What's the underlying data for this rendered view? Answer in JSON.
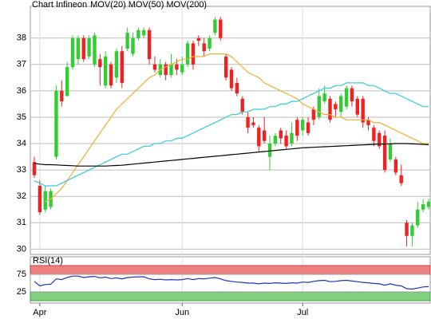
{
  "chart_data": {
    "type": "candlestick",
    "title": "Chart Infineon",
    "title_color": "#d86a2c",
    "categories": [
      null,
      "Apr",
      null,
      null,
      null,
      null,
      null,
      null,
      null,
      null,
      null,
      null,
      null,
      null,
      null,
      null,
      null,
      null,
      null,
      null,
      null,
      null,
      null,
      null,
      null,
      null,
      null,
      "Jun",
      null,
      null,
      null,
      null,
      null,
      null,
      null,
      null,
      null,
      null,
      null,
      null,
      null,
      null,
      null,
      null,
      null,
      null,
      null,
      null,
      null,
      "Jul",
      null,
      null,
      null,
      null,
      null,
      null,
      null,
      null,
      null,
      null,
      null,
      null,
      null,
      null,
      null,
      null,
      null,
      null,
      null,
      null,
      null,
      null,
      null
    ],
    "candles": {
      "up_color": "#33cc33",
      "down_color": "#ee2222",
      "open": [
        33.3,
        32.4,
        31.5,
        31.6,
        33.5,
        36.0,
        35.8,
        36.9,
        37.2,
        38.0,
        37.3,
        37.0,
        37.2,
        36.2,
        37.0,
        36.5,
        37.5,
        37.6,
        37.4,
        38.0,
        38.1,
        38.3,
        37.0,
        36.6,
        37.0,
        36.6,
        37.0,
        36.7,
        37.0,
        37.8,
        38.0,
        37.8,
        37.6,
        38.2,
        38.7,
        37.3,
        36.8,
        36.3,
        35.7,
        35.0,
        34.8,
        34.6,
        34.5,
        33.5,
        34.0,
        34.5,
        34.3,
        34.0,
        34.9,
        34.5,
        34.8,
        35.3,
        35.0,
        35.6,
        35.7,
        35.5,
        35.2,
        35.4,
        36.1,
        35.7,
        35.7,
        34.9,
        34.6,
        34.4,
        34.3,
        33.4,
        33.4,
        32.8,
        31.0,
        30.5,
        30.9,
        31.5,
        31.6
      ],
      "high": [
        33.5,
        32.6,
        32.4,
        32.3,
        36.2,
        36.4,
        37.1,
        38.1,
        38.1,
        38.1,
        38.1,
        38.2,
        37.4,
        37.5,
        37.1,
        37.6,
        37.7,
        38.4,
        38.2,
        38.4,
        38.4,
        38.4,
        37.3,
        37.2,
        37.1,
        37.4,
        37.2,
        37.3,
        37.9,
        37.9,
        38.1,
        38.0,
        38.1,
        38.8,
        38.8,
        37.4,
        36.9,
        36.5,
        35.8,
        35.2,
        35.0,
        34.7,
        35.0,
        34.3,
        34.4,
        34.6,
        34.5,
        34.8,
        35.0,
        35.0,
        35.0,
        35.4,
        36.1,
        36.2,
        35.8,
        35.6,
        35.9,
        36.2,
        36.2,
        35.8,
        35.8,
        35.0,
        34.7,
        34.5,
        34.5,
        34.2,
        33.5,
        33.2,
        31.1,
        31.0,
        31.8,
        31.9,
        31.9
      ],
      "low": [
        32.7,
        31.3,
        31.4,
        31.5,
        33.4,
        35.4,
        35.8,
        36.8,
        37.0,
        37.1,
        37.2,
        36.9,
        36.2,
        36.1,
        36.1,
        36.3,
        36.1,
        37.5,
        37.3,
        37.9,
        38.0,
        37.0,
        36.7,
        36.5,
        36.4,
        36.5,
        36.6,
        36.6,
        36.9,
        36.8,
        37.7,
        37.3,
        37.5,
        38.1,
        37.9,
        36.4,
        36.0,
        35.8,
        35.1,
        34.4,
        34.6,
        33.7,
        34.0,
        33.0,
        33.9,
        34.0,
        33.8,
        33.9,
        34.1,
        34.3,
        34.3,
        34.7,
        34.9,
        35.5,
        34.8,
        35.0,
        35.0,
        35.3,
        35.4,
        35.0,
        34.6,
        34.5,
        33.9,
        33.8,
        32.9,
        33.3,
        32.8,
        32.4,
        30.1,
        30.1,
        30.8,
        31.4,
        31.5
      ],
      "close": [
        32.8,
        31.4,
        32.2,
        32.2,
        36.0,
        35.6,
        36.9,
        38.0,
        38.0,
        37.2,
        38.0,
        38.1,
        36.9,
        37.3,
        36.2,
        37.5,
        36.3,
        38.2,
        38.0,
        38.3,
        38.3,
        37.2,
        36.8,
        37.0,
        36.6,
        37.0,
        36.8,
        37.0,
        37.8,
        37.0,
        37.9,
        37.5,
        38.0,
        38.7,
        38.0,
        36.5,
        36.1,
        35.9,
        35.2,
        34.6,
        34.7,
        33.9,
        34.1,
        34.0,
        34.3,
        34.2,
        33.9,
        34.4,
        34.3,
        34.9,
        34.4,
        34.9,
        35.8,
        35.9,
        34.9,
        35.3,
        35.8,
        36.1,
        35.6,
        35.1,
        34.8,
        34.7,
        34.1,
        33.9,
        33.0,
        34.0,
        32.9,
        32.5,
        30.5,
        30.9,
        31.5,
        31.7,
        31.8
      ]
    },
    "series": [
      {
        "name": "MOV(20)",
        "color": "#f0b030",
        "values": [
          null,
          null,
          31.8,
          31.9,
          32.1,
          32.3,
          32.6,
          32.9,
          33.2,
          33.5,
          33.8,
          34.1,
          34.4,
          34.7,
          35.0,
          35.3,
          35.5,
          35.7,
          35.9,
          36.1,
          36.3,
          36.5,
          36.6,
          36.8,
          36.9,
          37.0,
          37.1,
          37.2,
          37.2,
          37.3,
          37.3,
          37.3,
          37.4,
          37.4,
          37.4,
          37.4,
          37.3,
          37.1,
          36.9,
          36.7,
          36.6,
          36.5,
          36.3,
          36.2,
          36.1,
          36.0,
          35.9,
          35.8,
          35.7,
          35.5,
          35.4,
          35.3,
          35.2,
          35.1,
          35.1,
          35.0,
          35.0,
          34.9,
          34.9,
          34.9,
          34.9,
          34.9,
          34.8,
          34.8,
          34.7,
          34.6,
          34.5,
          34.4,
          34.3,
          34.2,
          34.1,
          34.0,
          34.0
        ]
      },
      {
        "name": "MOV(50)",
        "color": "#33ccdd",
        "values": [
          32.6,
          32.5,
          32.4,
          32.4,
          32.4,
          32.5,
          32.6,
          32.7,
          32.8,
          32.9,
          33.0,
          33.1,
          33.2,
          33.3,
          33.4,
          33.5,
          33.6,
          33.6,
          33.7,
          33.8,
          33.9,
          33.9,
          34.0,
          34.0,
          34.1,
          34.1,
          34.2,
          34.2,
          34.3,
          34.4,
          34.5,
          34.6,
          34.7,
          34.8,
          34.9,
          35.0,
          35.1,
          35.1,
          35.2,
          35.2,
          35.3,
          35.3,
          35.3,
          35.4,
          35.4,
          35.5,
          35.5,
          35.6,
          35.6,
          35.7,
          35.8,
          35.9,
          36.0,
          36.1,
          36.1,
          36.2,
          36.2,
          36.3,
          36.3,
          36.3,
          36.3,
          36.2,
          36.2,
          36.1,
          36.0,
          35.9,
          35.9,
          35.8,
          35.7,
          35.6,
          35.5,
          35.4,
          35.4
        ]
      },
      {
        "name": "MOV(200)",
        "color": "#000000",
        "values": [
          33.25,
          33.22,
          33.2,
          33.2,
          33.19,
          33.18,
          33.17,
          33.16,
          33.15,
          33.15,
          33.15,
          33.15,
          33.15,
          33.15,
          33.16,
          33.17,
          33.18,
          33.2,
          33.22,
          33.24,
          33.26,
          33.28,
          33.3,
          33.32,
          33.34,
          33.36,
          33.38,
          33.4,
          33.42,
          33.44,
          33.46,
          33.48,
          33.5,
          33.52,
          33.54,
          33.56,
          33.58,
          33.6,
          33.62,
          33.64,
          33.66,
          33.68,
          33.7,
          33.72,
          33.74,
          33.76,
          33.78,
          33.8,
          33.82,
          33.84,
          33.85,
          33.86,
          33.87,
          33.88,
          33.89,
          33.9,
          33.91,
          33.92,
          33.93,
          33.94,
          33.95,
          33.96,
          33.97,
          33.98,
          33.98,
          33.99,
          34,
          34,
          34,
          33.99,
          33.98,
          33.97,
          33.96
        ]
      }
    ],
    "ylim": [
      29.8,
      39.2
    ],
    "yticks": [
      30,
      31,
      32,
      33,
      34,
      35,
      36,
      37,
      38
    ],
    "grid": true,
    "rsi": {
      "title": "RSI(14)",
      "color": "#2233bb",
      "values": [
        55,
        42,
        46,
        47,
        62,
        60,
        66,
        70,
        70,
        66,
        68,
        69,
        65,
        67,
        63,
        65,
        62,
        66,
        67,
        68,
        68,
        62,
        60,
        61,
        59,
        60,
        59,
        60,
        63,
        60,
        63,
        62,
        64,
        66,
        62,
        57,
        55,
        53,
        52,
        50,
        50,
        48,
        50,
        49,
        51,
        50,
        49,
        51,
        50,
        53,
        52,
        55,
        57,
        58,
        54,
        55,
        57,
        58,
        56,
        54,
        52,
        51,
        49,
        48,
        44,
        48,
        44,
        42,
        34,
        33,
        36,
        39,
        40
      ],
      "ylim": [
        0,
        100
      ],
      "yticks": [
        25,
        75
      ],
      "upper_band_color": "#f08080",
      "lower_band_color": "#80d080"
    }
  }
}
